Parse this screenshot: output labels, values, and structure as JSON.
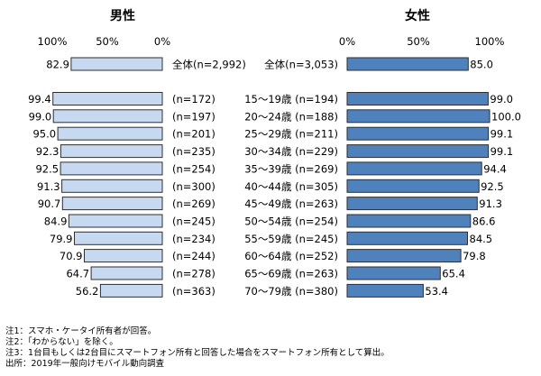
{
  "chart_data": [
    {
      "type": "bar",
      "orientation": "horizontal",
      "direction": "right-to-left",
      "title": "男性",
      "xlim": [
        0,
        100
      ],
      "xticks": [
        "100%",
        "50%",
        "0%"
      ],
      "color": "#c6d9f1",
      "categories": [
        "全体(n=2,992)",
        "(n=172)",
        "(n=197)",
        "(n=201)",
        "(n=235)",
        "(n=254)",
        "(n=300)",
        "(n=269)",
        "(n=245)",
        "(n=234)",
        "(n=244)",
        "(n=278)",
        "(n=363)"
      ],
      "values": [
        82.9,
        99.4,
        99.0,
        95.0,
        92.3,
        92.5,
        91.3,
        90.7,
        84.9,
        79.9,
        70.9,
        64.7,
        56.2
      ],
      "value_labels": [
        "82.9",
        "99.4",
        "99.0",
        "95.0",
        "92.3",
        "92.5",
        "91.3",
        "90.7",
        "84.9",
        "79.9",
        "70.9",
        "64.7",
        "56.2"
      ]
    },
    {
      "type": "bar",
      "orientation": "horizontal",
      "direction": "left-to-right",
      "title": "女性",
      "xlim": [
        0,
        100
      ],
      "xticks": [
        "0%",
        "50%",
        "100%"
      ],
      "color": "#4f81bd",
      "categories": [
        "全体(n=3,053)",
        "15～19歳 (n=194)",
        "20～24歳 (n=188)",
        "25～29歳 (n=211)",
        "30～34歳 (n=229)",
        "35～39歳 (n=269)",
        "40～44歳 (n=305)",
        "45～49歳 (n=263)",
        "50～54歳 (n=254)",
        "55～59歳 (n=245)",
        "60～64歳 (n=252)",
        "65～69歳 (n=263)",
        "70～79歳 (n=380)"
      ],
      "values": [
        85.0,
        99.0,
        100.0,
        99.1,
        99.1,
        94.4,
        92.5,
        91.3,
        86.6,
        84.5,
        79.8,
        65.4,
        53.4
      ],
      "value_labels": [
        "85.0",
        "99.0",
        "100.0",
        "99.1",
        "99.1",
        "94.4",
        "92.5",
        "91.3",
        "86.6",
        "84.5",
        "79.8",
        "65.4",
        "53.4"
      ]
    }
  ],
  "notes": [
    "注1：スマホ・ケータイ所有者が回答。",
    "注2：「わからない」を除く。",
    "注3：1台目もしくは2台目にスマートフォン所有と回答した場合をスマートフォン所有として算出。",
    "出所：2019年一般向けモバイル動向調査"
  ]
}
